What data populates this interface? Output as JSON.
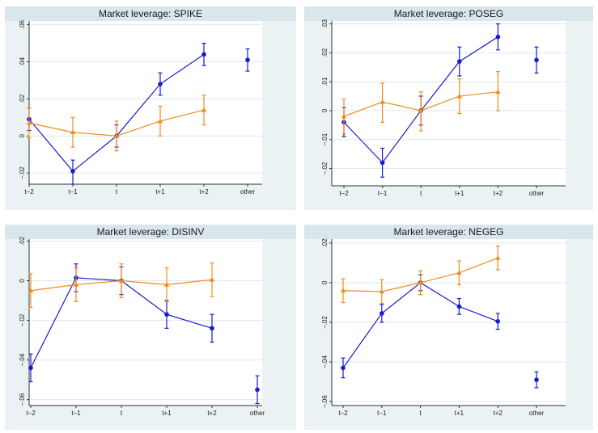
{
  "colors": {
    "series_blue": "#1a1ad0",
    "series_orange": "#f28b1c",
    "plot_bg": "#ffffff",
    "outer_bg": "#eaf2f3",
    "title_bg": "#d9e6eb",
    "grid": "#dde9ec"
  },
  "chart_data": [
    {
      "type": "line",
      "title": "Market leverage: SPIKE",
      "categories": [
        "t−2",
        "t−1",
        "t",
        "t+1",
        "t+2",
        "other"
      ],
      "ylim": [
        -0.026,
        0.062
      ],
      "yticks": [
        -0.02,
        0,
        0.02,
        0.04,
        0.06
      ],
      "yticklabels": [
        "−.02",
        "0",
        ".02",
        ".04",
        ".06"
      ],
      "series": [
        {
          "color": "blue",
          "values": [
            0.009,
            -0.019,
            0.0,
            0.028,
            0.044,
            0.041
          ],
          "ci_low": [
            0.003,
            -0.026,
            -0.006,
            0.022,
            0.038,
            0.035
          ],
          "ci_high": [
            0.015,
            -0.013,
            0.006,
            0.034,
            0.05,
            0.047
          ]
        },
        {
          "color": "orange",
          "values": [
            0.007,
            0.002,
            0.0,
            0.008,
            0.014,
            null
          ],
          "ci_low": [
            -0.001,
            -0.006,
            -0.008,
            0.0,
            0.006,
            null
          ],
          "ci_high": [
            0.015,
            0.01,
            0.008,
            0.016,
            0.022,
            null
          ]
        }
      ],
      "grid": true,
      "legend": "none"
    },
    {
      "type": "line",
      "title": "Market leverage: POSEG",
      "categories": [
        "t−2",
        "t−1",
        "t",
        "t+1",
        "t+2",
        "other"
      ],
      "ylim": [
        -0.026,
        0.031
      ],
      "yticks": [
        -0.02,
        -0.01,
        0,
        0.01,
        0.02,
        0.03
      ],
      "yticklabels": [
        "−.02",
        "−.01",
        "0",
        ".01",
        ".02",
        ".03"
      ],
      "series": [
        {
          "color": "blue",
          "values": [
            -0.004,
            -0.018,
            0.0,
            0.017,
            0.0255,
            0.0175
          ],
          "ci_low": [
            -0.009,
            -0.023,
            -0.005,
            0.012,
            0.021,
            0.013
          ],
          "ci_high": [
            0.001,
            -0.013,
            0.005,
            0.022,
            0.03,
            0.022
          ]
        },
        {
          "color": "orange",
          "values": [
            -0.002,
            0.003,
            0.0,
            0.005,
            0.0065,
            null
          ],
          "ci_low": [
            -0.008,
            -0.004,
            -0.007,
            -0.001,
            0.0,
            null
          ],
          "ci_high": [
            0.004,
            0.0095,
            0.0065,
            0.011,
            0.0135,
            null
          ]
        }
      ],
      "grid": true,
      "legend": "none"
    },
    {
      "type": "line",
      "title": "Market leverage: DISINV",
      "categories": [
        "t−2",
        "t−1",
        "t",
        "t+1",
        "t+2",
        "other"
      ],
      "ylim": [
        -0.063,
        0.021
      ],
      "yticks": [
        -0.06,
        -0.04,
        -0.02,
        0,
        0.02
      ],
      "yticklabels": [
        "−.06",
        "−.04",
        "−.02",
        "0",
        ".02"
      ],
      "series": [
        {
          "color": "blue",
          "values": [
            -0.044,
            0.0015,
            0.0,
            -0.017,
            -0.024,
            -0.055
          ],
          "ci_low": [
            -0.051,
            -0.0055,
            -0.007,
            -0.024,
            -0.031,
            -0.062
          ],
          "ci_high": [
            -0.037,
            0.0085,
            0.007,
            -0.01,
            -0.017,
            -0.048
          ]
        },
        {
          "color": "orange",
          "values": [
            -0.005,
            -0.002,
            0.0,
            -0.002,
            0.0005,
            null
          ],
          "ci_low": [
            -0.0135,
            -0.0105,
            -0.0085,
            -0.0105,
            -0.008,
            null
          ],
          "ci_high": [
            0.0035,
            0.0065,
            0.0085,
            0.0065,
            0.009,
            null
          ]
        }
      ],
      "grid": true,
      "legend": "none"
    },
    {
      "type": "line",
      "title": "Market leverage: NEGEG",
      "categories": [
        "t−2",
        "t−1",
        "t",
        "t+1",
        "t+2",
        "other"
      ],
      "ylim": [
        -0.062,
        0.022
      ],
      "yticks": [
        -0.06,
        -0.04,
        -0.02,
        0,
        0.02
      ],
      "yticklabels": [
        "−.06",
        "−.04",
        "−.02",
        "0",
        ".02"
      ],
      "series": [
        {
          "color": "blue",
          "values": [
            -0.043,
            -0.0155,
            0.0,
            -0.012,
            -0.0195,
            -0.049
          ],
          "ci_low": [
            -0.048,
            -0.02,
            -0.004,
            -0.016,
            -0.0235,
            -0.053
          ],
          "ci_high": [
            -0.038,
            -0.011,
            0.004,
            -0.008,
            -0.0155,
            -0.045
          ]
        },
        {
          "color": "orange",
          "values": [
            -0.004,
            -0.0045,
            0.0,
            0.005,
            0.0125,
            null
          ],
          "ci_low": [
            -0.01,
            -0.0105,
            -0.006,
            -0.001,
            0.0065,
            null
          ],
          "ci_high": [
            0.002,
            0.0015,
            0.006,
            0.011,
            0.0185,
            null
          ]
        }
      ],
      "grid": true,
      "legend": "none"
    }
  ]
}
